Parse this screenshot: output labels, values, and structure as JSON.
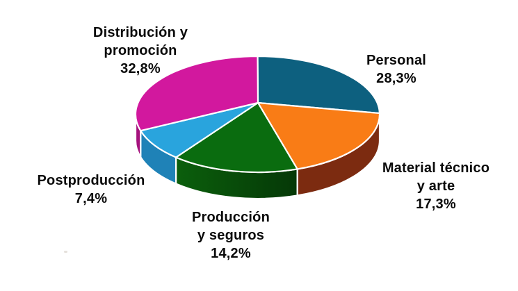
{
  "chart_data": {
    "type": "pie",
    "style": "3d-perspective",
    "title": "",
    "unit": "%",
    "decimal_style": "comma",
    "legend": "none",
    "labels_position": "outside",
    "total": 100.0,
    "slices": [
      {
        "id": "personal",
        "label": "Personal",
        "label_lines": [
          "Personal"
        ],
        "value": 28.3,
        "pct_display": "28,3%",
        "color": "#0D607F",
        "side_color": "#0A4A63",
        "start_deg": 0,
        "end_deg": 89
      },
      {
        "id": "material-tecnico-y-arte",
        "label": "Material técnico y arte",
        "label_lines": [
          "Material técnico",
          "y arte"
        ],
        "value": 17.3,
        "pct_display": "17,3%",
        "color": "#F97C16",
        "side_color": "#7C2B10",
        "start_deg": 89,
        "end_deg": 161
      },
      {
        "id": "produccion-y-seguros",
        "label": "Producción y seguros",
        "label_lines": [
          "Producción",
          "y seguros"
        ],
        "value": 14.2,
        "pct_display": "14,2%",
        "color": "#0A6C0F",
        "side_color": "#0B5F0C",
        "side_color2": "#053807",
        "start_deg": 161,
        "end_deg": 222
      },
      {
        "id": "postproduccion",
        "label": "Postproducción",
        "label_lines": [
          "Postproducción"
        ],
        "value": 7.4,
        "pct_display": "7,4%",
        "color": "#29A4DD",
        "side_color": "#1F82B7",
        "start_deg": 222,
        "end_deg": 253.5
      },
      {
        "id": "distribucion-y-promocion",
        "label": "Distribución y promoción",
        "label_lines": [
          "Distribución y",
          "promoción"
        ],
        "value": 32.8,
        "pct_display": "32,8%",
        "color": "#D2189E",
        "side_color": "#A5127D",
        "start_deg": 253.5,
        "end_deg": 360
      }
    ]
  }
}
